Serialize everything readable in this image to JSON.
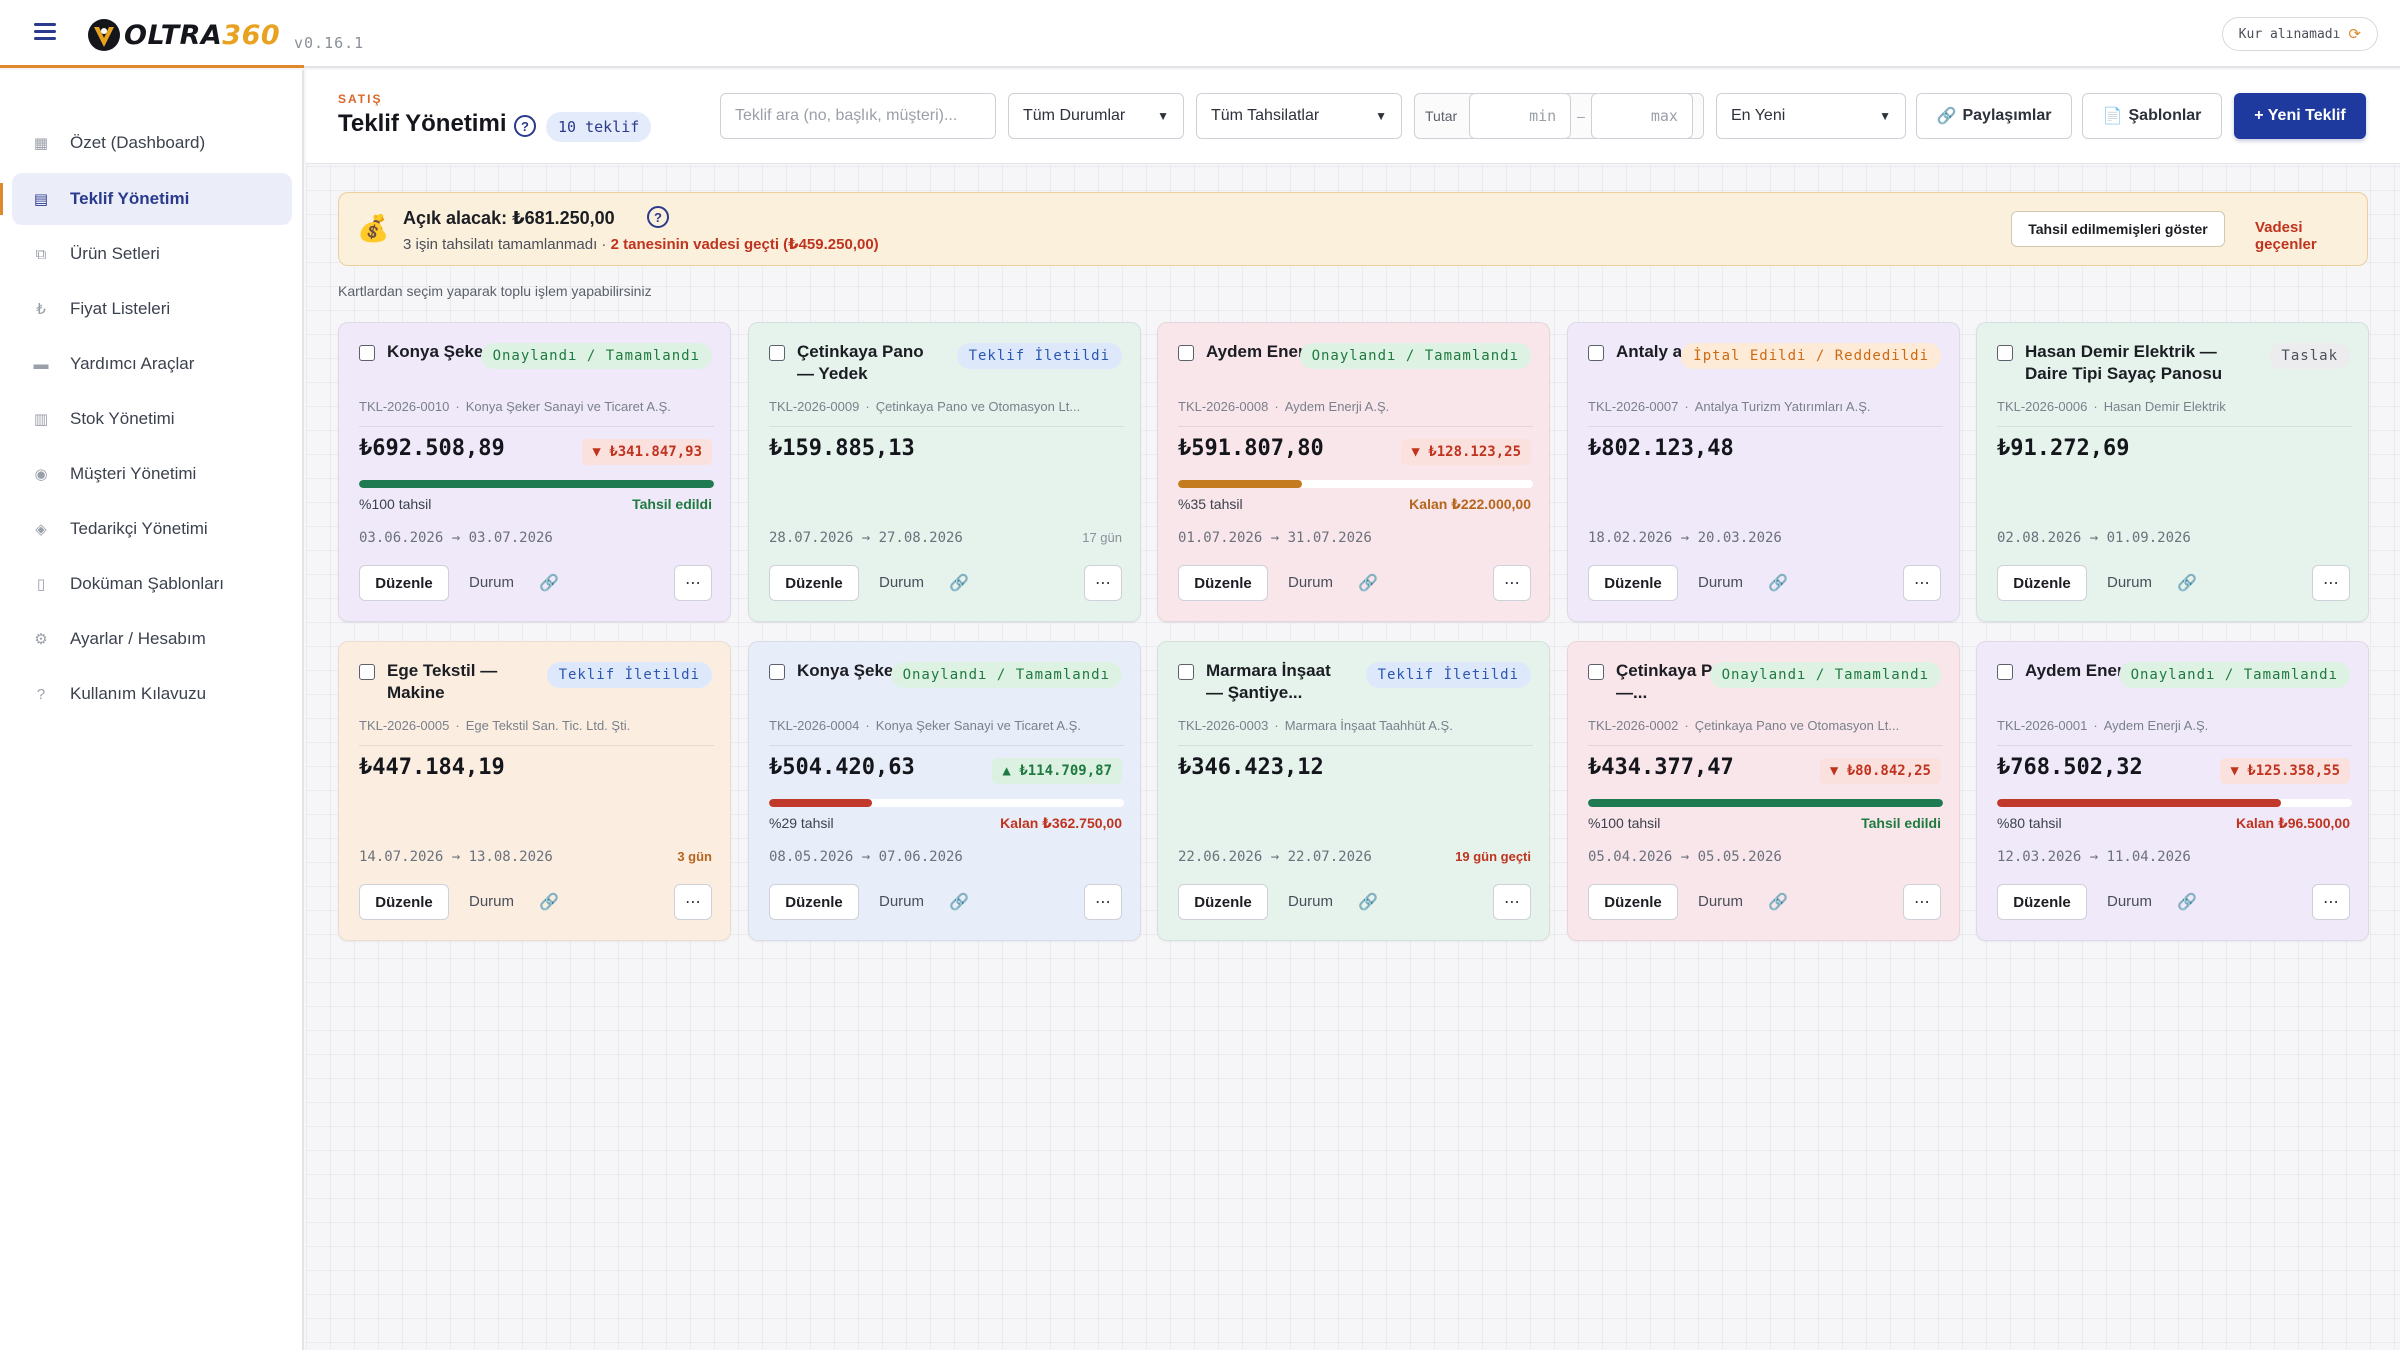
{
  "app": {
    "logo_text": "OLTRA",
    "logo_num": "360",
    "version": "v0.16.1",
    "kur_status": "Kur alınamadı",
    "kur_icon": "refresh-icon"
  },
  "sidebar": {
    "items": [
      {
        "label": "Özet (Dashboard)",
        "icon": "dashboard-icon",
        "glyph": "▦"
      },
      {
        "label": "Teklif Yönetimi",
        "icon": "document-icon",
        "glyph": "▤",
        "active": true
      },
      {
        "label": "Ürün Setleri",
        "icon": "box-icon",
        "glyph": "⧉"
      },
      {
        "label": "Fiyat Listeleri",
        "icon": "lira-icon",
        "glyph": "₺"
      },
      {
        "label": "Yardımcı Araçlar",
        "icon": "toolbox-icon",
        "glyph": "▬"
      },
      {
        "label": "Stok Yönetimi",
        "icon": "stock-icon",
        "glyph": "▥"
      },
      {
        "label": "Müşteri Yönetimi",
        "icon": "customer-icon",
        "glyph": "◉"
      },
      {
        "label": "Tedarikçi Yönetimi",
        "icon": "supplier-icon",
        "glyph": "◈"
      },
      {
        "label": "Doküman Şablonları",
        "icon": "file-icon",
        "glyph": "▯"
      },
      {
        "label": "Ayarlar / Hesabım",
        "icon": "gear-icon",
        "glyph": "⚙"
      },
      {
        "label": "Kullanım Kılavuzu",
        "icon": "question-icon",
        "glyph": "?"
      }
    ]
  },
  "header": {
    "eyebrow": "SATIŞ",
    "title": "Teklif Yönetimi",
    "count_badge": "10 teklif",
    "search_placeholder": "Teklif ara (no, başlık, müşteri)...",
    "status_filter": "Tüm Durumlar",
    "collection_filter": "Tüm Tahsilatlar",
    "amount_label": "Tutar",
    "min_placeholder": "min",
    "max_placeholder": "max",
    "sort": "En Yeni",
    "shares_button": "Paylaşımlar",
    "templates_button": "Şablonlar",
    "new_button": "+ Yeni Teklif"
  },
  "alert": {
    "title": "Açık alacak: ₺681.250,00",
    "subtitle": "3 işin tahsilatı tamamlanmadı · ",
    "warning": "2 tanesinin vadesi geçti (₺459.250,00)",
    "show_button": "Tahsil edilmemişleri göster",
    "overdue_link": "Vadesi geçenler"
  },
  "hint": "Kartlardan seçim yaparak toplu işlem yapabilirsiniz",
  "card_labels": {
    "edit": "Düzenle",
    "status": "Durum",
    "more": "⋯"
  },
  "colors": {
    "brand_blue": "#1f3a9e",
    "accent_orange": "#e0892c",
    "progress_green": "#1f7a52",
    "progress_orange": "#c47a1f",
    "progress_red": "#c0392b"
  },
  "cards": [
    {
      "title": "Konya Şeker ...",
      "status": "Onaylandı / Tamamlandı",
      "status_kind": "onay",
      "color": "purple",
      "code": "TKL-2026-0010",
      "customer": "Konya Şeker Sanayi ve Ticaret A.Ş.",
      "amount": "₺692.508,89",
      "diff": "▼ ₺341.847,93",
      "diff_kind": "down",
      "progress": 100,
      "pct_label": "%100 tahsil",
      "remain_label": "Tahsil edildi",
      "remain_kind": "green",
      "dates": "03.06.2026 → 03.07.2026",
      "days": ""
    },
    {
      "title": "Çetinkaya Pano — Yedek Parça...",
      "status": "Teklif İletildi",
      "status_kind": "ilet",
      "color": "green",
      "code": "TKL-2026-0009",
      "customer": "Çetinkaya Pano ve Otomasyon Lt...",
      "amount": "₺159.885,13",
      "diff": "",
      "diff_kind": "",
      "progress": null,
      "pct_label": "",
      "remain_label": "",
      "remain_kind": "",
      "dates": "28.07.2026 → 27.08.2026",
      "days": "17 gün",
      "days_kind": "gray"
    },
    {
      "title": "Aydem Enerji ...",
      "status": "Onaylandı / Tamamlandı",
      "status_kind": "onay",
      "color": "pink",
      "code": "TKL-2026-0008",
      "customer": "Aydem Enerji A.Ş.",
      "amount": "₺591.807,80",
      "diff": "▼ ₺128.123,25",
      "diff_kind": "down",
      "progress": 35,
      "pct_label": "%35 tahsil",
      "remain_label": "Kalan ₺222.000,00",
      "remain_kind": "orange",
      "dates": "01.07.2026 → 31.07.2026",
      "days": ""
    },
    {
      "title": "Antaly a...",
      "status": "İptal Edildi / Reddedildi",
      "status_kind": "iptal",
      "color": "purple",
      "code": "TKL-2026-0007",
      "customer": "Antalya Turizm Yatırımları A.Ş.",
      "amount": "₺802.123,48",
      "diff": "",
      "diff_kind": "",
      "progress": null,
      "pct_label": "",
      "remain_label": "",
      "remain_kind": "",
      "dates": "18.02.2026 → 20.03.2026",
      "days": ""
    },
    {
      "title": "Hasan Demir Elektrik — Daire Tipi Sayaç Panosu",
      "status": "Taslak",
      "status_kind": "taslak",
      "color": "green",
      "code": "TKL-2026-0006",
      "customer": "Hasan Demir Elektrik",
      "amount": "₺91.272,69",
      "diff": "",
      "diff_kind": "",
      "progress": null,
      "pct_label": "",
      "remain_label": "",
      "remain_kind": "",
      "dates": "02.08.2026 → 01.09.2026",
      "days": "",
      "wide": true
    },
    {
      "title": "Ege Tekstil — Makine Beslem...",
      "status": "Teklif İletildi",
      "status_kind": "ilet",
      "color": "peach",
      "code": "TKL-2026-0005",
      "customer": "Ege Tekstil San. Tic. Ltd. Şti.",
      "amount": "₺447.184,19",
      "diff": "",
      "diff_kind": "",
      "progress": null,
      "pct_label": "",
      "remain_label": "",
      "remain_kind": "",
      "dates": "14.07.2026 → 13.08.2026",
      "days": "3 gün",
      "days_kind": "orange"
    },
    {
      "title": "Konya Şeker ...",
      "status": "Onaylandı / Tamamlandı",
      "status_kind": "onay",
      "color": "blue",
      "code": "TKL-2026-0004",
      "customer": "Konya Şeker Sanayi ve Ticaret A.Ş.",
      "amount": "₺504.420,63",
      "diff": "▲ ₺114.709,87",
      "diff_kind": "up",
      "progress": 29,
      "pct_label": "%29 tahsil",
      "remain_label": "Kalan ₺362.750,00",
      "remain_kind": "red",
      "dates": "08.05.2026 → 07.06.2026",
      "days": ""
    },
    {
      "title": "Marmara İnşaat — Şantiye...",
      "status": "Teklif İletildi",
      "status_kind": "ilet",
      "color": "green",
      "code": "TKL-2026-0003",
      "customer": "Marmara İnşaat Taahhüt A.Ş.",
      "amount": "₺346.423,12",
      "diff": "",
      "diff_kind": "",
      "progress": null,
      "pct_label": "",
      "remain_label": "",
      "remain_kind": "",
      "dates": "22.06.2026 → 22.07.2026",
      "days": "19 gün geçti",
      "days_kind": "red"
    },
    {
      "title": "Çetinkaya Pano —...",
      "status": "Onaylandı / Tamamlandı",
      "status_kind": "onay",
      "color": "pink",
      "code": "TKL-2026-0002",
      "customer": "Çetinkaya Pano ve Otomasyon Lt...",
      "amount": "₺434.377,47",
      "diff": "▼ ₺80.842,25",
      "diff_kind": "down",
      "progress": 100,
      "pct_label": "%100 tahsil",
      "remain_label": "Tahsil edildi",
      "remain_kind": "green",
      "dates": "05.04.2026 → 05.05.2026",
      "days": ""
    },
    {
      "title": "Aydem Enerji ...",
      "status": "Onaylandı / Tamamlandı",
      "status_kind": "onay",
      "color": "purple",
      "code": "TKL-2026-0001",
      "customer": "Aydem Enerji A.Ş.",
      "amount": "₺768.502,32",
      "diff": "▼ ₺125.358,55",
      "diff_kind": "down",
      "progress": 80,
      "pct_label": "%80 tahsil",
      "remain_label": "Kalan ₺96.500,00",
      "remain_kind": "red",
      "dates": "12.03.2026 → 11.04.2026",
      "days": ""
    }
  ]
}
